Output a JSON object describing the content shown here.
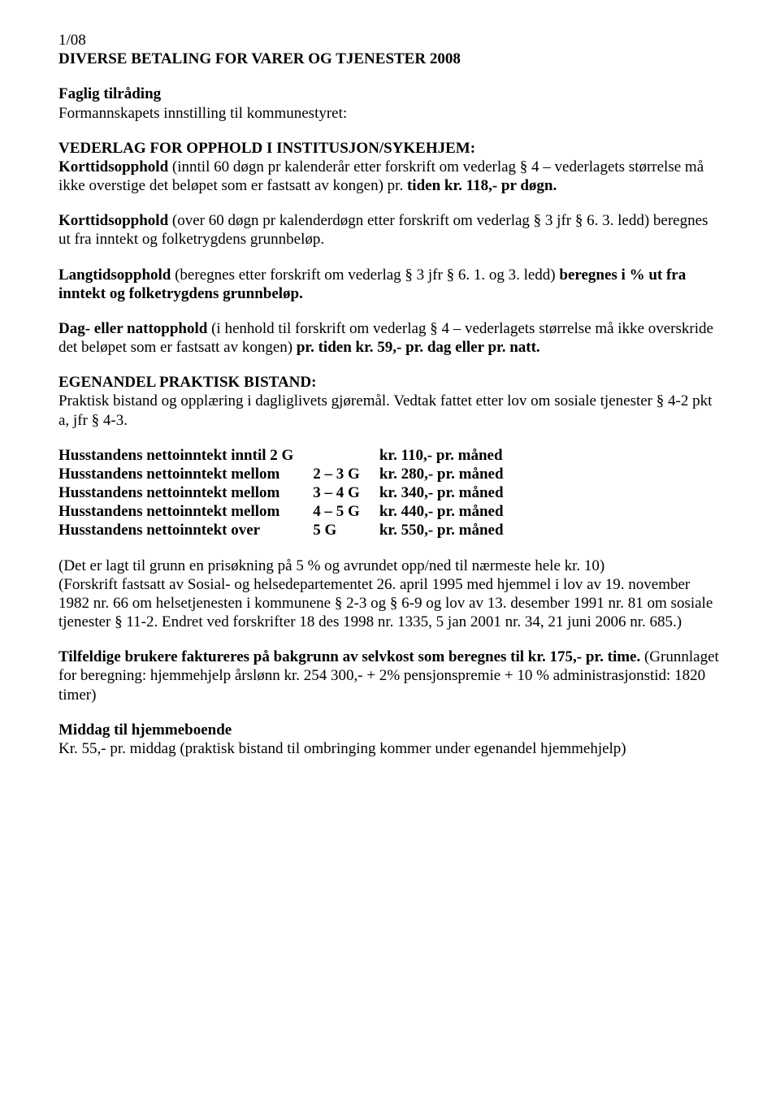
{
  "header": {
    "case_no": "1/08",
    "title": "DIVERSE BETALING FOR VARER OG TJENESTER 2008"
  },
  "intro": {
    "line1": "Faglig tilråding",
    "line2": "Formannskapets innstilling til kommunestyret:"
  },
  "vederlag": {
    "heading": "VEDERLAG FOR OPPHOLD I INSTITUSJON/SYKEHJEM:",
    "korttid_pre": "Korttidsopphold ",
    "korttid_body": "(inntil 60 døgn pr kalenderår etter forskrift om vederlag § 4 – vederlagets størrelse må ikke overstige det beløpet som er fastsatt av kongen) pr. ",
    "korttid_post": "tiden kr. 118,- pr døgn.",
    "korttid60_pre": "Korttidsopphold ",
    "korttid60_body": "(over 60 døgn pr kalenderdøgn etter forskrift om vederlag § 3 jfr § 6. 3. ledd) beregnes ut fra inntekt og folketrygdens grunnbeløp.",
    "langtid_pre": "Langtidsopphold ",
    "langtid_body": "(beregnes etter forskrift om vederlag § 3 jfr § 6. 1. og 3. ledd) ",
    "langtid_post": "beregnes i % ut fra inntekt og folketrygdens grunnbeløp.",
    "dagnatt_pre": "Dag- eller nattopphold ",
    "dagnatt_body": "(i henhold til forskrift om vederlag § 4 – vederlagets størrelse må ikke overskride det beløpet som er fastsatt av kongen) ",
    "dagnatt_post": "pr. tiden kr. 59,- pr. dag eller pr. natt."
  },
  "egenandel": {
    "heading": "EGENANDEL PRAKTISK BISTAND:",
    "intro": "Praktisk bistand og opplæring i dagliglivets gjøremål. Vedtak fattet etter lov om sosiale tjenester § 4-2 pkt a, jfr § 4-3."
  },
  "inntekt": {
    "rows": [
      {
        "label": "Husstandens nettoinntekt inntil 2 G",
        "range": "",
        "amount": "kr. 110,- pr. måned"
      },
      {
        "label": "Husstandens nettoinntekt mellom",
        "range": "2 – 3 G",
        "amount": "kr. 280,- pr. måned"
      },
      {
        "label": "Husstandens nettoinntekt mellom",
        "range": "3 – 4 G",
        "amount": "kr. 340,- pr. måned"
      },
      {
        "label": "Husstandens nettoinntekt mellom",
        "range": "4 – 5 G",
        "amount": "kr. 440,- pr. måned"
      },
      {
        "label": "Husstandens nettoinntekt over",
        "range": "5 G",
        "amount": "kr. 550,- pr. måned"
      }
    ]
  },
  "notes": {
    "price_increase": "(Det er lagt til grunn en prisøkning på 5 % og avrundet opp/ned til nærmeste hele kr. 10)",
    "forskrift": "(Forskrift fastsatt av Sosial- og helsedepartementet 26. april 1995 med hjemmel i lov av 19. november 1982 nr. 66 om helsetjenesten i kommunene § 2-3 og § 6-9 og lov av 13. desember 1991 nr. 81 om sosiale tjenester § 11-2. Endret ved forskrifter 18 des 1998 nr. 1335, 5 jan 2001 nr. 34, 21 juni 2006 nr. 685.)"
  },
  "tilfeldige": {
    "pre": "Tilfeldige brukere faktureres på bakgrunn av selvkost som beregnes til kr. 175,- pr. time. ",
    "post": "(Grunnlaget for beregning: hjemmehjelp årslønn kr. 254 300,- + 2% pensjonspremie + 10 % administrasjonstid: 1820 timer)"
  },
  "middag": {
    "heading": "Middag til hjemmeboende",
    "body": "Kr. 55,- pr. middag (praktisk bistand til ombringing kommer under egenandel hjemmehjelp)"
  }
}
